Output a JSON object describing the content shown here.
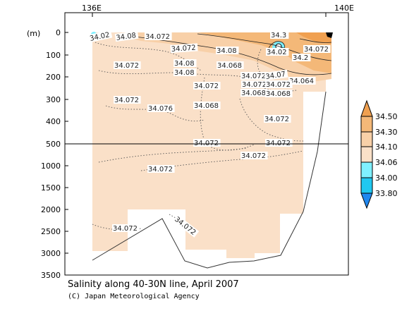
{
  "chart_data": {
    "type": "heatmap",
    "title": "Salinity along 40-30N line, April 2007",
    "credit": "(C) Japan Meteorological Agency",
    "x_ticks": [
      "136E",
      "140E"
    ],
    "y_unit": "(m)",
    "y_ticks": [
      "0",
      "100",
      "200",
      "300",
      "400",
      "500",
      "1000",
      "1500",
      "2000",
      "2500",
      "3000",
      "3500"
    ],
    "y_break": 500,
    "colorbar": {
      "levels": [
        "34.50",
        "34.30",
        "34.10",
        "34.06",
        "34.00",
        "33.80"
      ],
      "colors": {
        "above_34_50": "#f0a050",
        "c_34_30_34_50": "#f4b878",
        "c_34_10_34_30": "#f8d0a8",
        "c_34_06_34_10": "#fae0c8",
        "c_34_00_34_06": "#7ff0ff",
        "c_33_80_34_00": "#20c8f0",
        "below_33_80": "#2088f0"
      }
    },
    "contour_labels": [
      "34.02",
      "34.08",
      "34.072",
      "34.072",
      "34.08",
      "34.3",
      "34.02",
      "34.2",
      "34.072",
      "34.08",
      "34.08",
      "34.068",
      "34.072",
      "34.072",
      "34.068",
      "34.07",
      "34.064",
      "34.072",
      "34.072",
      "34.068",
      "34.072",
      "34.076",
      "34.068",
      "34.072",
      "34.072",
      "34.072",
      "34.072",
      "34.072",
      "34.072",
      "34.072",
      "34.072"
    ],
    "contour_levels": [
      "34.50",
      "34.30",
      "34.10",
      "34.06",
      "34.00",
      "33.80"
    ]
  }
}
